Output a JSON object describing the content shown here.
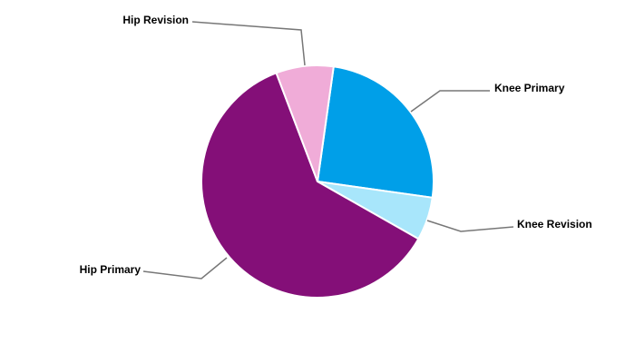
{
  "chart_data": {
    "type": "pie",
    "categories": [
      "Knee Primary",
      "Knee Revision",
      "Hip Primary",
      "Hip Revision"
    ],
    "values": [
      25,
      6,
      61,
      8
    ],
    "colors": [
      "#009fe8",
      "#a8e6fb",
      "#840f78",
      "#f0acd8"
    ]
  }
}
